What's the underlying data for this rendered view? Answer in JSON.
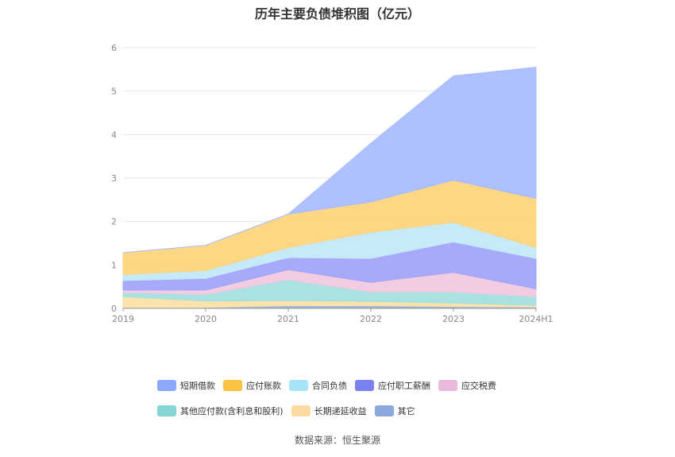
{
  "chart_data": {
    "type": "area",
    "stacked": true,
    "title": "历年主要负债堆积图（亿元）",
    "categories": [
      "2019",
      "2020",
      "2021",
      "2022",
      "2023",
      "2024H1"
    ],
    "ylim": [
      0,
      6
    ],
    "yticks": [
      "0",
      "1",
      "2",
      "3",
      "4",
      "5",
      "6"
    ],
    "grid": true,
    "legend_position": "bottom",
    "series": [
      {
        "name": "其它",
        "color": "#8eaedc",
        "values": [
          0.02,
          0.02,
          0.06,
          0.06,
          0.04,
          0.03
        ]
      },
      {
        "name": "长期递延收益",
        "color": "#fcdfa4",
        "values": [
          0.25,
          0.15,
          0.12,
          0.1,
          0.08,
          0.04
        ]
      },
      {
        "name": "其他应付款(含利息和股利)",
        "color": "#a3e0de",
        "values": [
          0.1,
          0.15,
          0.48,
          0.22,
          0.26,
          0.2
        ]
      },
      {
        "name": "应交税费",
        "color": "#f0c8e0",
        "values": [
          0.05,
          0.1,
          0.23,
          0.22,
          0.45,
          0.18
        ]
      },
      {
        "name": "应付职工薪酬",
        "color": "#a0a3f8",
        "values": [
          0.22,
          0.27,
          0.28,
          0.55,
          0.7,
          0.7
        ]
      },
      {
        "name": "合同负债",
        "color": "#c2e8f8",
        "values": [
          0.14,
          0.18,
          0.23,
          0.6,
          0.45,
          0.25
        ]
      },
      {
        "name": "应付账款",
        "color": "#fdd47a",
        "values": [
          0.5,
          0.58,
          0.77,
          0.7,
          0.97,
          1.13
        ]
      },
      {
        "name": "短期借款",
        "color": "#a7bbff",
        "values": [
          0.0,
          0.0,
          0.0,
          1.35,
          2.4,
          3.02
        ]
      }
    ],
    "legend": [
      {
        "name": "短期借款",
        "color": "#8aa8ff"
      },
      {
        "name": "应付账款",
        "color": "#fcc242"
      },
      {
        "name": "合同负债",
        "color": "#a6e2fa"
      },
      {
        "name": "应付职工薪酬",
        "color": "#7b80f2"
      },
      {
        "name": "应交税费",
        "color": "#eab8d8"
      },
      {
        "name": "其他应付款(含利息和股利)",
        "color": "#86d6d4"
      },
      {
        "name": "长期递延收益",
        "color": "#fcd9a0"
      },
      {
        "name": "其它",
        "color": "#8aa8dc"
      }
    ]
  },
  "source": "数据来源：恒生聚源"
}
